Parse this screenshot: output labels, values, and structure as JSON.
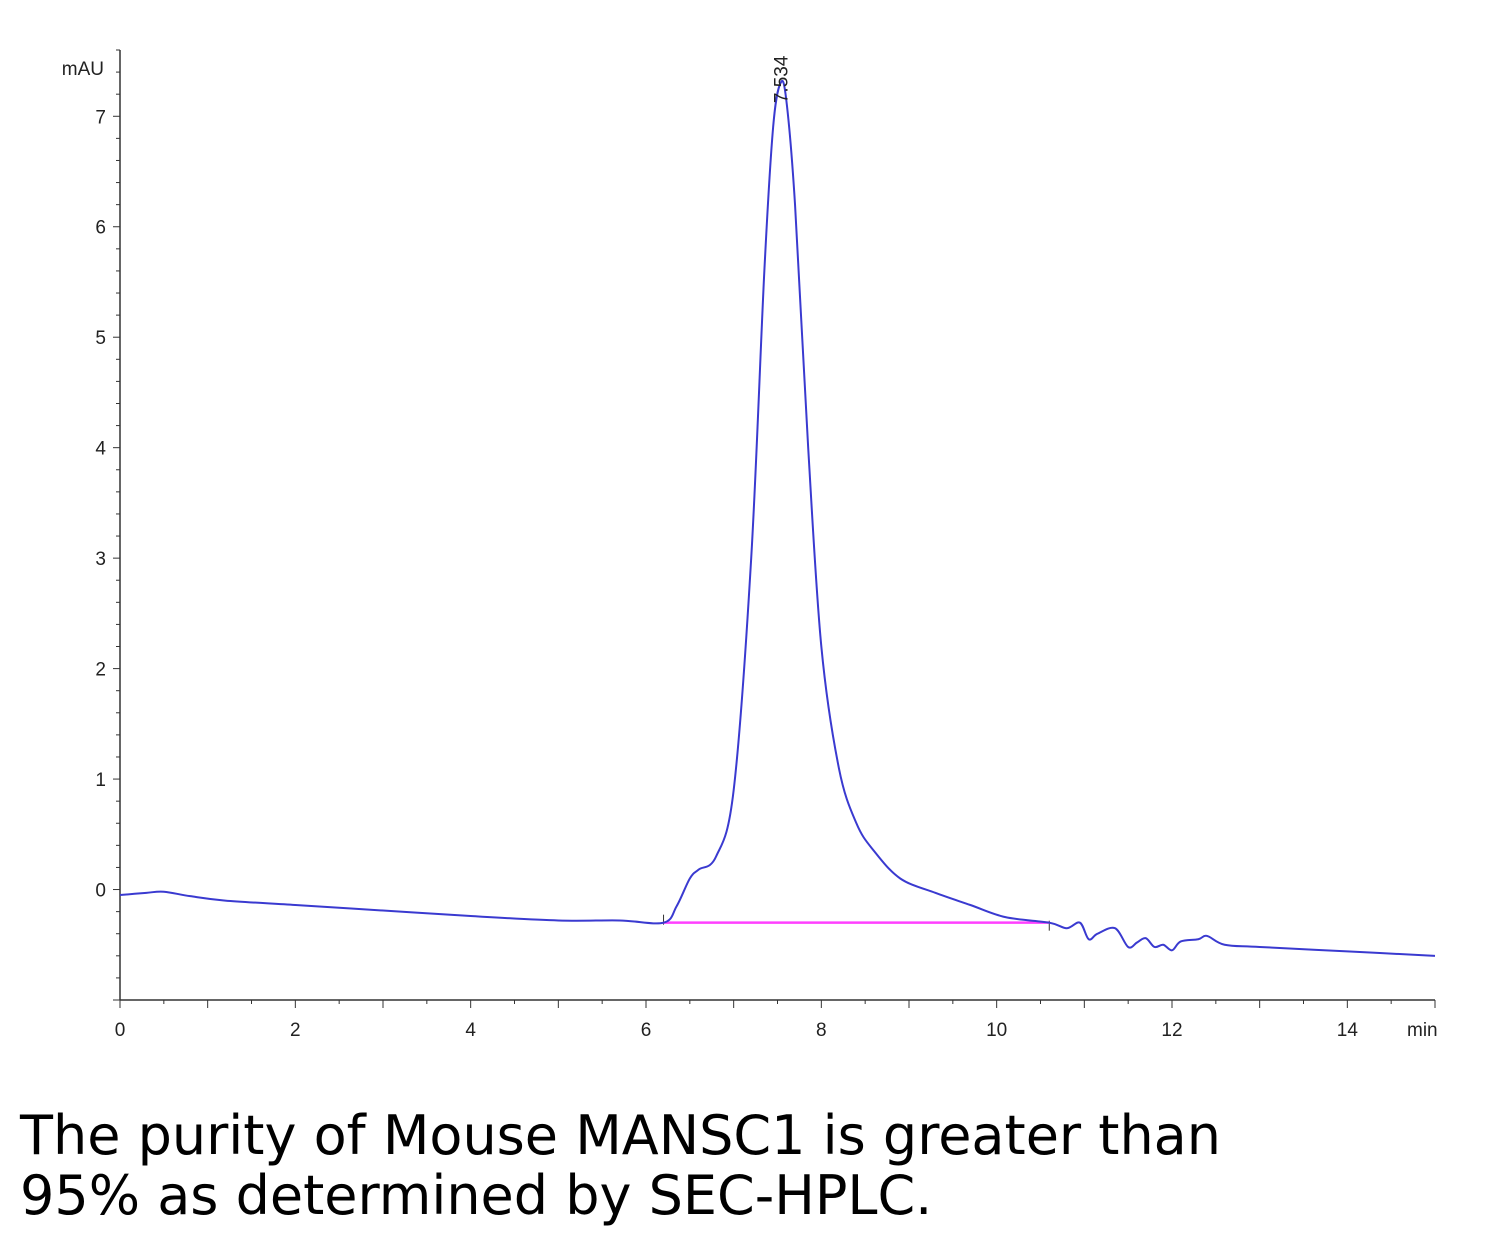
{
  "chart_data": {
    "type": "line",
    "y_unit": "mAU",
    "x_unit": "min",
    "xlim": [
      0,
      15
    ],
    "ylim": [
      -1,
      7.6
    ],
    "x_ticks": [
      0,
      2,
      4,
      6,
      8,
      10,
      12,
      14
    ],
    "y_ticks": [
      0,
      1,
      2,
      3,
      4,
      5,
      6,
      7
    ],
    "grid": false,
    "peak": {
      "x": 7.534,
      "y": 7.3,
      "label": "7.534"
    },
    "baseline": {
      "x_start": 6.2,
      "x_end": 10.6,
      "y": -0.3,
      "color": "#ff40ff"
    },
    "trace_color": "#3a3ad0",
    "series": [
      {
        "x": [
          0,
          0.3,
          0.5,
          0.8,
          1.2,
          2,
          3,
          4,
          5,
          5.7,
          6.2,
          6.35,
          6.5,
          6.6,
          6.8,
          7.0,
          7.2,
          7.35,
          7.45,
          7.534,
          7.6,
          7.7,
          7.85,
          8.0,
          8.2,
          8.4,
          8.6,
          8.9,
          9.3,
          9.7,
          10.1,
          10.6,
          10.8,
          10.95,
          11.05,
          11.15,
          11.35,
          11.5,
          11.6,
          11.7,
          11.8,
          11.9,
          12.0,
          12.1,
          12.3,
          12.4,
          12.6,
          13,
          14,
          15
        ],
        "y": [
          -0.05,
          -0.03,
          -0.02,
          -0.06,
          -0.1,
          -0.14,
          -0.19,
          -0.24,
          -0.28,
          -0.28,
          -0.3,
          -0.15,
          0.1,
          0.18,
          0.3,
          0.9,
          3.0,
          5.6,
          6.9,
          7.3,
          7.15,
          6.2,
          4.0,
          2.2,
          1.1,
          0.6,
          0.35,
          0.1,
          -0.03,
          -0.14,
          -0.25,
          -0.3,
          -0.35,
          -0.3,
          -0.45,
          -0.4,
          -0.35,
          -0.52,
          -0.48,
          -0.44,
          -0.52,
          -0.5,
          -0.55,
          -0.47,
          -0.45,
          -0.42,
          -0.5,
          -0.52,
          -0.56,
          -0.6
        ]
      }
    ]
  },
  "caption": {
    "line1": "The purity of Mouse MANSC1 is greater than",
    "line2": "95% as determined by SEC-HPLC."
  }
}
